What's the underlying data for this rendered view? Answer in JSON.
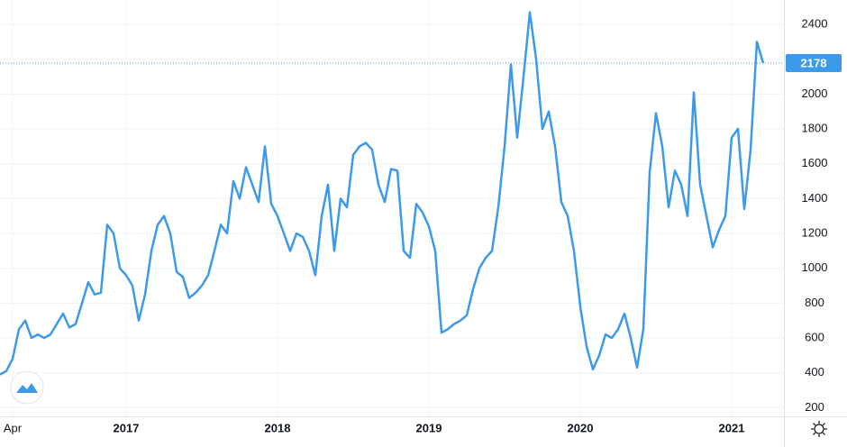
{
  "chart_data": {
    "type": "line",
    "series": [
      {
        "color": "#3d9ae8",
        "values": [
          390,
          410,
          480,
          650,
          700,
          600,
          620,
          600,
          620,
          680,
          740,
          660,
          680,
          800,
          920,
          850,
          860,
          1250,
          1200,
          1000,
          960,
          900,
          700,
          850,
          1100,
          1250,
          1300,
          1200,
          980,
          950,
          830,
          860,
          900,
          960,
          1100,
          1250,
          1200,
          1500,
          1400,
          1580,
          1480,
          1380,
          1700,
          1370,
          1300,
          1200,
          1100,
          1200,
          1180,
          1100,
          960,
          1300,
          1480,
          1100,
          1400,
          1350,
          1650,
          1700,
          1720,
          1680,
          1480,
          1380,
          1570,
          1560,
          1100,
          1060,
          1370,
          1320,
          1240,
          1100,
          630,
          650,
          680,
          700,
          730,
          880,
          1000,
          1060,
          1100,
          1350,
          1700,
          2170,
          1750,
          2100,
          2470,
          2200,
          1800,
          1900,
          1700,
          1380,
          1300,
          1100,
          780,
          550,
          420,
          500,
          620,
          600,
          650,
          740,
          600,
          430,
          650,
          1550,
          1890,
          1700,
          1350,
          1560,
          1480,
          1300,
          2010,
          1480,
          1300,
          1120,
          1220,
          1300,
          1750,
          1800,
          1340,
          1680,
          2300,
          2178
        ]
      }
    ],
    "xlim": [
      0,
      124
    ],
    "xticks": [
      {
        "value": 2,
        "label": "Apr"
      },
      {
        "value": 20,
        "label": "2017"
      },
      {
        "value": 44,
        "label": "2018"
      },
      {
        "value": 68,
        "label": "2019"
      },
      {
        "value": 92,
        "label": "2020"
      },
      {
        "value": 116,
        "label": "2021"
      }
    ],
    "ylim": [
      150,
      2540
    ],
    "yticks": [
      200,
      400,
      600,
      800,
      1000,
      1200,
      1400,
      1600,
      1800,
      2000,
      2200,
      2400
    ],
    "grid": true
  }
}
